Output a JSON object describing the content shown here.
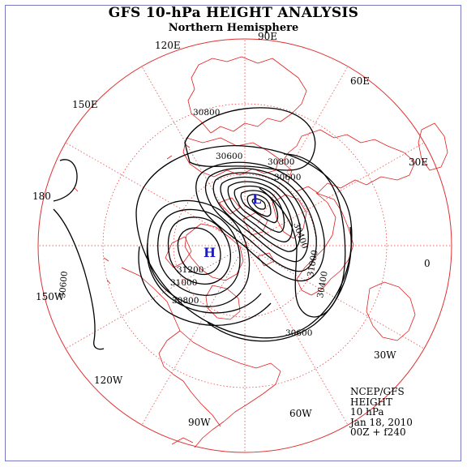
{
  "title": "GFS 10-hPa HEIGHT ANALYSIS",
  "subtitle": "Northern Hemisphere",
  "longitude_labels": [
    "90E",
    "60E",
    "30E",
    "0",
    "30W",
    "60W",
    "90W",
    "120W",
    "150W",
    "180",
    "150E",
    "120E"
  ],
  "contour_labels": [
    "30800",
    "30600",
    "30800",
    "30600",
    "30400",
    "31200",
    "31000",
    "30800",
    "30600",
    "31000",
    "30400",
    "30600"
  ],
  "centers": {
    "low": "L",
    "high": "H"
  },
  "info": {
    "source": "NCEP/GFS",
    "field": "HEIGHT",
    "level": "10 hPa",
    "date": "Jan 18, 2010",
    "cycle": "00Z + f240"
  },
  "colors": {
    "graticule": "#e03030",
    "coastline": "#e02020",
    "contour": "#000000",
    "center_marker": "#1a1ad0",
    "frame": "#7a7ac0"
  }
}
